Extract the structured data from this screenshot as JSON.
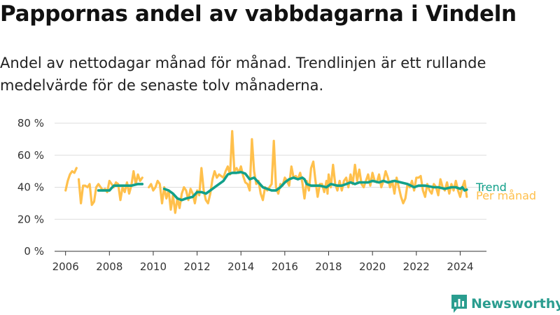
{
  "title": "Pappornas andel av vabbdagarna i Vindeln",
  "subtitle": "Andel av nettodagar månad för månad. Trendlinjen är ett rullande medelvärde för de senaste tolv månaderna.",
  "brand": "Newsworthy",
  "colors": {
    "monthly": "#ffc04c",
    "trend": "#12a08a",
    "axis": "#333333",
    "grid": "#dddddd"
  },
  "chart_data": {
    "type": "line",
    "ylim": [
      0,
      80
    ],
    "yticks": [
      0,
      20,
      40,
      60,
      80
    ],
    "ytick_labels": [
      "0 %",
      "20 %",
      "40 %",
      "60 %",
      "80 %"
    ],
    "xlim": [
      2005.5,
      2025.2
    ],
    "xticks": [
      2006,
      2008,
      2010,
      2012,
      2014,
      2016,
      2018,
      2020,
      2022,
      2024
    ],
    "xtick_labels": [
      "2006",
      "2008",
      "2010",
      "2012",
      "2014",
      "2016",
      "2018",
      "2020",
      "2022",
      "2024"
    ],
    "grid": true,
    "legend": "direct labels at right end",
    "series": [
      {
        "name": "Per månad",
        "segments": [
          [
            [
              2006.0,
              38
            ],
            [
              2006.1,
              44
            ],
            [
              2006.2,
              48
            ],
            [
              2006.3,
              50
            ],
            [
              2006.4,
              49
            ],
            [
              2006.5,
              52
            ]
          ],
          [
            [
              2006.6,
              45
            ],
            [
              2006.7,
              30
            ],
            [
              2006.8,
              41
            ],
            [
              2006.9,
              41
            ],
            [
              2007.0,
              40
            ],
            [
              2007.1,
              42
            ],
            [
              2007.2,
              29
            ],
            [
              2007.3,
              31
            ],
            [
              2007.4,
              40
            ],
            [
              2007.5,
              42
            ],
            [
              2007.6,
              40
            ],
            [
              2007.7,
              38
            ],
            [
              2007.8,
              39
            ],
            [
              2007.9,
              37
            ],
            [
              2008.0,
              44
            ],
            [
              2008.1,
              42
            ],
            [
              2008.2,
              40
            ],
            [
              2008.3,
              43
            ],
            [
              2008.4,
              42
            ],
            [
              2008.5,
              32
            ],
            [
              2008.6,
              40
            ],
            [
              2008.7,
              37
            ],
            [
              2008.8,
              43
            ],
            [
              2008.9,
              36
            ],
            [
              2009.0,
              41
            ],
            [
              2009.1,
              50
            ],
            [
              2009.2,
              42
            ],
            [
              2009.3,
              48
            ],
            [
              2009.4,
              44
            ],
            [
              2009.5,
              46
            ]
          ],
          [
            [
              2009.8,
              40
            ],
            [
              2009.9,
              42
            ],
            [
              2010.0,
              38
            ],
            [
              2010.1,
              40
            ],
            [
              2010.2,
              44
            ],
            [
              2010.3,
              42
            ],
            [
              2010.4,
              30
            ],
            [
              2010.5,
              40
            ],
            [
              2010.6,
              33
            ],
            [
              2010.7,
              38
            ],
            [
              2010.8,
              26
            ],
            [
              2010.9,
              35
            ],
            [
              2011.0,
              24
            ],
            [
              2011.1,
              33
            ],
            [
              2011.2,
              27
            ],
            [
              2011.3,
              36
            ],
            [
              2011.4,
              40
            ],
            [
              2011.5,
              38
            ],
            [
              2011.6,
              32
            ],
            [
              2011.7,
              39
            ],
            [
              2011.8,
              36
            ],
            [
              2011.9,
              30
            ],
            [
              2012.0,
              38
            ],
            [
              2012.1,
              35
            ],
            [
              2012.2,
              52
            ],
            [
              2012.3,
              38
            ],
            [
              2012.4,
              32
            ],
            [
              2012.5,
              30
            ],
            [
              2012.6,
              36
            ],
            [
              2012.7,
              45
            ],
            [
              2012.8,
              50
            ],
            [
              2012.9,
              46
            ],
            [
              2013.0,
              48
            ],
            [
              2013.1,
              47
            ],
            [
              2013.2,
              46
            ],
            [
              2013.3,
              50
            ],
            [
              2013.4,
              53
            ],
            [
              2013.5,
              48
            ],
            [
              2013.6,
              75
            ],
            [
              2013.7,
              50
            ],
            [
              2013.8,
              52
            ],
            [
              2013.9,
              49
            ],
            [
              2014.0,
              53
            ],
            [
              2014.1,
              47
            ],
            [
              2014.2,
              43
            ],
            [
              2014.3,
              42
            ],
            [
              2014.4,
              38
            ],
            [
              2014.5,
              70
            ],
            [
              2014.6,
              50
            ],
            [
              2014.7,
              42
            ],
            [
              2014.8,
              44
            ],
            [
              2014.9,
              36
            ],
            [
              2015.0,
              32
            ],
            [
              2015.1,
              40
            ],
            [
              2015.2,
              38
            ],
            [
              2015.3,
              40
            ],
            [
              2015.4,
              42
            ],
            [
              2015.5,
              69
            ],
            [
              2015.6,
              40
            ],
            [
              2015.7,
              36
            ],
            [
              2015.8,
              42
            ],
            [
              2015.9,
              41
            ],
            [
              2016.0,
              46
            ],
            [
              2016.1,
              44
            ],
            [
              2016.2,
              41
            ],
            [
              2016.3,
              53
            ],
            [
              2016.4,
              46
            ],
            [
              2016.5,
              47
            ],
            [
              2016.6,
              45
            ],
            [
              2016.7,
              49
            ],
            [
              2016.8,
              43
            ],
            [
              2016.9,
              33
            ],
            [
              2017.0,
              44
            ],
            [
              2017.1,
              38
            ],
            [
              2017.2,
              52
            ],
            [
              2017.3,
              56
            ],
            [
              2017.4,
              44
            ],
            [
              2017.5,
              34
            ],
            [
              2017.6,
              42
            ],
            [
              2017.7,
              42
            ],
            [
              2017.8,
              37
            ],
            [
              2017.9,
              44
            ],
            [
              2017.95,
              36
            ],
            [
              2018.0,
              48
            ],
            [
              2018.1,
              40
            ],
            [
              2018.2,
              54
            ],
            [
              2018.3,
              42
            ],
            [
              2018.4,
              38
            ],
            [
              2018.5,
              44
            ],
            [
              2018.6,
              38
            ],
            [
              2018.7,
              44
            ],
            [
              2018.8,
              46
            ],
            [
              2018.9,
              40
            ],
            [
              2019.0,
              48
            ],
            [
              2019.1,
              42
            ],
            [
              2019.2,
              54
            ],
            [
              2019.3,
              44
            ],
            [
              2019.4,
              51
            ],
            [
              2019.5,
              42
            ],
            [
              2019.6,
              40
            ],
            [
              2019.7,
              44
            ],
            [
              2019.8,
              48
            ],
            [
              2019.9,
              41
            ],
            [
              2020.0,
              49
            ],
            [
              2020.1,
              44
            ],
            [
              2020.2,
              43
            ],
            [
              2020.3,
              48
            ],
            [
              2020.4,
              40
            ],
            [
              2020.5,
              44
            ],
            [
              2020.6,
              50
            ],
            [
              2020.7,
              46
            ],
            [
              2020.8,
              40
            ],
            [
              2020.9,
              44
            ],
            [
              2021.0,
              36
            ],
            [
              2021.1,
              46
            ],
            [
              2021.2,
              40
            ],
            [
              2021.3,
              34
            ],
            [
              2021.4,
              30
            ],
            [
              2021.5,
              33
            ],
            [
              2021.6,
              42
            ],
            [
              2021.7,
              40
            ],
            [
              2021.8,
              44
            ],
            [
              2021.9,
              38
            ],
            [
              2022.0,
              46
            ],
            [
              2022.1,
              46
            ],
            [
              2022.2,
              47
            ],
            [
              2022.3,
              38
            ],
            [
              2022.4,
              34
            ],
            [
              2022.5,
              42
            ],
            [
              2022.6,
              38
            ],
            [
              2022.7,
              36
            ],
            [
              2022.8,
              42
            ],
            [
              2022.9,
              40
            ],
            [
              2023.0,
              35
            ],
            [
              2023.1,
              45
            ],
            [
              2023.2,
              40
            ],
            [
              2023.3,
              38
            ],
            [
              2023.4,
              43
            ],
            [
              2023.5,
              36
            ],
            [
              2023.6,
              42
            ],
            [
              2023.7,
              38
            ],
            [
              2023.8,
              44
            ],
            [
              2023.9,
              38
            ],
            [
              2024.0,
              34
            ],
            [
              2024.1,
              40
            ],
            [
              2024.2,
              44
            ],
            [
              2024.3,
              34
            ]
          ]
        ]
      },
      {
        "name": "Trend",
        "segments": [
          [
            [
              2007.5,
              38
            ],
            [
              2008.0,
              38
            ],
            [
              2008.2,
              41
            ],
            [
              2008.6,
              41
            ],
            [
              2009.0,
              41
            ],
            [
              2009.3,
              42
            ],
            [
              2009.5,
              42
            ]
          ],
          [
            [
              2010.5,
              39
            ],
            [
              2010.7,
              38
            ],
            [
              2010.9,
              36
            ],
            [
              2011.1,
              33
            ],
            [
              2011.3,
              32
            ],
            [
              2011.5,
              33
            ],
            [
              2011.8,
              34
            ],
            [
              2012.0,
              37
            ],
            [
              2012.2,
              37
            ],
            [
              2012.4,
              36
            ],
            [
              2012.6,
              38
            ],
            [
              2012.9,
              41
            ],
            [
              2013.2,
              44
            ],
            [
              2013.4,
              48
            ],
            [
              2013.6,
              49
            ],
            [
              2013.8,
              49
            ],
            [
              2014.0,
              49.5
            ],
            [
              2014.2,
              48.5
            ],
            [
              2014.4,
              45
            ],
            [
              2014.6,
              46
            ],
            [
              2014.8,
              43
            ],
            [
              2015.0,
              40
            ],
            [
              2015.2,
              39
            ],
            [
              2015.4,
              38
            ],
            [
              2015.6,
              38
            ],
            [
              2015.8,
              40
            ],
            [
              2016.0,
              43
            ],
            [
              2016.2,
              45
            ],
            [
              2016.4,
              46
            ],
            [
              2016.6,
              45
            ],
            [
              2016.8,
              46
            ],
            [
              2016.9,
              45
            ],
            [
              2017.0,
              42
            ],
            [
              2017.2,
              41
            ],
            [
              2017.6,
              41
            ],
            [
              2017.9,
              40
            ],
            [
              2018.1,
              42
            ],
            [
              2018.4,
              41
            ],
            [
              2018.6,
              41
            ],
            [
              2018.8,
              42
            ],
            [
              2019.0,
              43
            ],
            [
              2019.2,
              42
            ],
            [
              2019.4,
              43
            ],
            [
              2019.8,
              43
            ],
            [
              2020.0,
              44
            ],
            [
              2020.3,
              43
            ],
            [
              2020.5,
              44
            ],
            [
              2020.7,
              43
            ],
            [
              2021.0,
              44
            ],
            [
              2021.3,
              43
            ],
            [
              2021.6,
              42
            ],
            [
              2021.9,
              40
            ],
            [
              2022.1,
              41
            ],
            [
              2022.4,
              41
            ],
            [
              2022.8,
              40
            ],
            [
              2023.0,
              40
            ],
            [
              2023.3,
              39
            ],
            [
              2023.6,
              40
            ],
            [
              2023.8,
              40
            ],
            [
              2024.0,
              39
            ],
            [
              2024.1,
              40
            ],
            [
              2024.2,
              38
            ],
            [
              2024.3,
              38.5
            ]
          ]
        ]
      }
    ]
  }
}
